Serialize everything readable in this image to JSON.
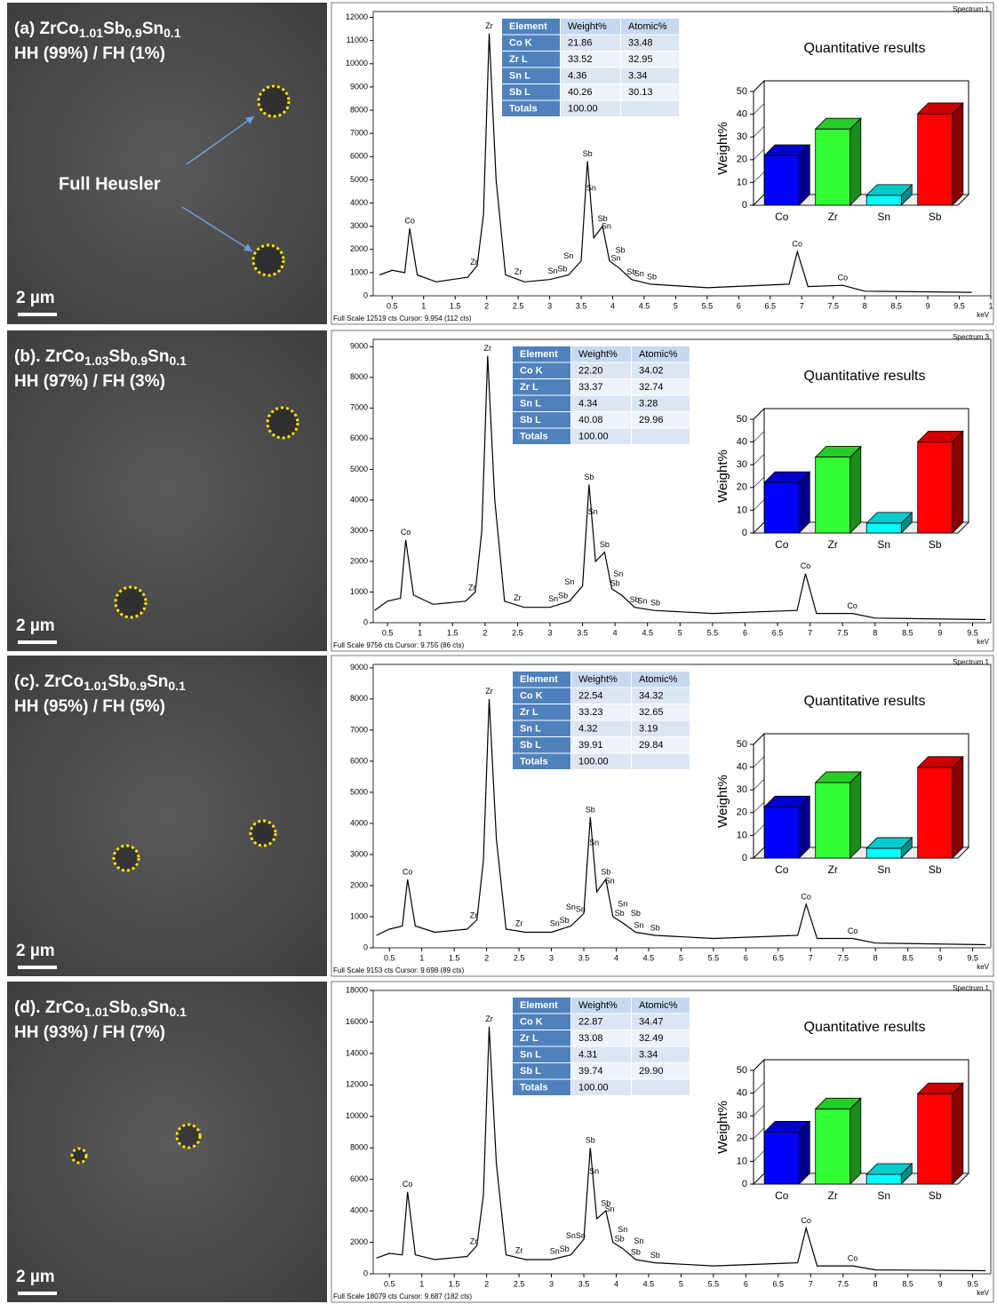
{
  "images": [
    {
      "title_parts": [
        "(a)  ZrCo",
        "1.01",
        "Sb",
        "0.9",
        "Sn",
        "0.1"
      ],
      "phase": "HH (99%) / FH (1%)",
      "scale_bar": "2 µm",
      "annotation": "Full Heusler"
    },
    {
      "title_parts": [
        "(b). ZrCo",
        "1.03",
        "Sb",
        "0.9",
        "Sn",
        "0.1"
      ],
      "phase": "HH (97%) / FH (3%)",
      "scale_bar": "2 µm"
    },
    {
      "title_parts": [
        "(c). ZrCo",
        "1.01",
        "Sb",
        "0.9",
        "Sn",
        "0.1"
      ],
      "phase": "HH (95%) / FH (5%)",
      "scale_bar": "2 µm"
    },
    {
      "title_parts": [
        "(d). ZrCo",
        "1.01",
        "Sb",
        "0.9",
        "Sn",
        "0.1"
      ],
      "phase": "HH (93%) / FH (7%)",
      "scale_bar": "2 µm"
    }
  ],
  "tables": [
    {
      "header": [
        "Element",
        "Weight%",
        "Atomic%"
      ],
      "rows": [
        [
          "Co K",
          "21.86",
          "33.48"
        ],
        [
          "Zr L",
          "33.52",
          "32.95"
        ],
        [
          "Sn L",
          "4.36",
          "3.34"
        ],
        [
          "Sb L",
          "40.26",
          "30.13"
        ],
        [
          "Totals",
          "100.00",
          ""
        ]
      ]
    },
    {
      "header": [
        "Element",
        "Weight%",
        "Atomic%"
      ],
      "rows": [
        [
          "Co K",
          "22.20",
          "34.02"
        ],
        [
          "Zr L",
          "33.37",
          "32.74"
        ],
        [
          "Sn L",
          "4.34",
          "3.28"
        ],
        [
          "Sb L",
          "40.08",
          "29.96"
        ],
        [
          "Totals",
          "100.00",
          ""
        ]
      ]
    },
    {
      "header": [
        "Element",
        "Weight%",
        "Atomic%"
      ],
      "rows": [
        [
          "Co K",
          "22.54",
          "34.32"
        ],
        [
          "Zr L",
          "33.23",
          "32.65"
        ],
        [
          "Sn L",
          "4.32",
          "3.19"
        ],
        [
          "Sb L",
          "39.91",
          "29.84"
        ],
        [
          "Totals",
          "100.00",
          ""
        ]
      ]
    },
    {
      "header": [
        "Element",
        "Weight%",
        "Atomic%"
      ],
      "rows": [
        [
          "Co K",
          "22.87",
          "34.47"
        ],
        [
          "Zr L",
          "33.08",
          "32.49"
        ],
        [
          "Sn L",
          "4.31",
          "3.34"
        ],
        [
          "Sb L",
          "39.74",
          "29.90"
        ],
        [
          "Totals",
          "100.00",
          ""
        ]
      ]
    }
  ],
  "chart_data": [
    {
      "type": "line",
      "spectrum_label": "Spectrum 1",
      "footer": "Full Scale 12519 cts Cursor: 9.954  (112 cts)",
      "xlabel": "keV",
      "color": "#000000",
      "x": [
        0.3,
        0.5,
        0.7,
        0.78,
        0.9,
        1.2,
        1.7,
        1.85,
        1.95,
        2.04,
        2.15,
        2.3,
        2.6,
        3.0,
        3.3,
        3.5,
        3.6,
        3.7,
        3.84,
        3.95,
        4.1,
        4.3,
        4.6,
        5.5,
        6.8,
        6.93,
        7.1,
        7.65,
        8.0,
        9.7
      ],
      "values": [
        900,
        1100,
        1000,
        2900,
        900,
        600,
        800,
        1300,
        3500,
        11300,
        5000,
        900,
        600,
        700,
        900,
        1500,
        5800,
        2500,
        3000,
        1500,
        1200,
        700,
        500,
        350,
        500,
        1900,
        400,
        450,
        200,
        150
      ],
      "xlim": [
        0.2,
        10.0
      ],
      "ylim": [
        0,
        12250
      ],
      "xticks": [
        0.5,
        1,
        1.5,
        2,
        2.5,
        3,
        3.5,
        4,
        4.5,
        5,
        5.5,
        6,
        6.5,
        7,
        7.5,
        8,
        8.5,
        9,
        9.5,
        {
          "value": 10,
          "label": "1"
        }
      ],
      "yticks": [
        0,
        1000,
        2000,
        3000,
        4000,
        5000,
        6000,
        7000,
        8000,
        9000,
        10000,
        11000,
        12000
      ],
      "peak_labels": [
        {
          "label": "Co",
          "x": 0.78
        },
        {
          "label": "Zr",
          "x": 1.8
        },
        {
          "label": "Zr",
          "x": 2.04
        },
        {
          "label": "Zr",
          "x": 2.5
        },
        {
          "label": "Sn",
          "x": 3.05
        },
        {
          "label": "Sb",
          "x": 3.2
        },
        {
          "label": "Sn",
          "x": 3.3
        },
        {
          "label": "Sb",
          "x": 3.6
        },
        {
          "label": "Sn",
          "x": 3.66
        },
        {
          "label": "Sb",
          "x": 3.84
        },
        {
          "label": "Sn",
          "x": 3.9
        },
        {
          "label": "Sn",
          "x": 4.05
        },
        {
          "label": "Sb",
          "x": 4.12
        },
        {
          "label": "Sb",
          "x": 4.3
        },
        {
          "label": "Sn",
          "x": 4.42
        },
        {
          "label": "Sb",
          "x": 4.62
        },
        {
          "label": "Co",
          "x": 6.93
        },
        {
          "label": "Co",
          "x": 7.65
        }
      ]
    },
    {
      "type": "bar3d",
      "title": "Quantitative results",
      "ylabel": "Weight%",
      "categories": [
        "Co",
        "Zr",
        "Sn",
        "Sb"
      ],
      "values": [
        21.86,
        33.52,
        4.36,
        40.26
      ],
      "colors": [
        "#0000ff",
        "#33ff33",
        "#00ffff",
        "#ff0000"
      ],
      "ylim": [
        0,
        50
      ],
      "yticks": [
        0,
        10,
        20,
        30,
        40,
        50
      ]
    },
    {
      "type": "line",
      "spectrum_label": "Spectrum 3",
      "footer": "Full Scale 9756 cts Cursor: 9.755  (86 cts)",
      "xlabel": "keV",
      "color": "#000000",
      "x": [
        0.3,
        0.5,
        0.7,
        0.78,
        0.9,
        1.2,
        1.7,
        1.85,
        1.95,
        2.04,
        2.15,
        2.3,
        2.6,
        3.0,
        3.3,
        3.5,
        3.6,
        3.7,
        3.84,
        3.95,
        4.1,
        4.3,
        4.6,
        5.5,
        6.8,
        6.93,
        7.1,
        7.65,
        8.0,
        9.7
      ],
      "values": [
        400,
        700,
        800,
        2700,
        900,
        600,
        700,
        1000,
        3000,
        8700,
        4000,
        700,
        500,
        500,
        700,
        1200,
        4500,
        2000,
        2300,
        1100,
        900,
        500,
        400,
        300,
        400,
        1600,
        300,
        300,
        150,
        100
      ],
      "xlim": [
        0.28,
        9.78
      ],
      "ylim": [
        0,
        9240
      ],
      "xticks": [
        0.5,
        1,
        1.5,
        2,
        2.5,
        3,
        3.5,
        4,
        4.5,
        5,
        5.5,
        6,
        6.5,
        7,
        7.5,
        8,
        8.5,
        9,
        9.5
      ],
      "yticks": [
        0,
        1000,
        2000,
        3000,
        4000,
        5000,
        6000,
        7000,
        8000,
        9000
      ],
      "peak_labels": [
        {
          "label": "Co",
          "x": 0.78
        },
        {
          "label": "Zr",
          "x": 1.8
        },
        {
          "label": "Zr",
          "x": 2.04
        },
        {
          "label": "Zr",
          "x": 2.5
        },
        {
          "label": "Sn",
          "x": 3.05
        },
        {
          "label": "Sb",
          "x": 3.2
        },
        {
          "label": "Sn",
          "x": 3.3
        },
        {
          "label": "Sb",
          "x": 3.6
        },
        {
          "label": "Sn",
          "x": 3.66
        },
        {
          "label": "Sb",
          "x": 3.84
        },
        {
          "label": "Sb",
          "x": 4.0
        },
        {
          "label": "Sn",
          "x": 4.05
        },
        {
          "label": "Sb",
          "x": 4.3
        },
        {
          "label": "Sn",
          "x": 4.42
        },
        {
          "label": "Sb",
          "x": 4.62
        },
        {
          "label": "Co",
          "x": 6.93
        },
        {
          "label": "Co",
          "x": 7.65
        }
      ]
    },
    {
      "type": "bar3d",
      "title": "Quantitative results",
      "ylabel": "Weight%",
      "categories": [
        "Co",
        "Zr",
        "Sn",
        "Sb"
      ],
      "values": [
        22.2,
        33.37,
        4.34,
        40.08
      ],
      "colors": [
        "#0000ff",
        "#33ff33",
        "#00ffff",
        "#ff0000"
      ],
      "ylim": [
        0,
        50
      ],
      "yticks": [
        0,
        10,
        20,
        30,
        40,
        50
      ]
    },
    {
      "type": "line",
      "spectrum_label": "Spectrum 1",
      "footer": "Full Scale 9153 cts Cursor: 9.698  (89 cts)",
      "xlabel": "keV",
      "color": "#000000",
      "x": [
        0.3,
        0.5,
        0.7,
        0.78,
        0.9,
        1.2,
        1.7,
        1.85,
        1.95,
        2.04,
        2.15,
        2.3,
        2.6,
        3.0,
        3.3,
        3.5,
        3.6,
        3.7,
        3.84,
        3.95,
        4.1,
        4.3,
        4.6,
        5.5,
        6.8,
        6.93,
        7.1,
        7.65,
        8.0,
        9.7
      ],
      "values": [
        400,
        600,
        700,
        2200,
        700,
        500,
        600,
        900,
        2800,
        8000,
        3500,
        600,
        500,
        500,
        700,
        1100,
        4200,
        1800,
        2200,
        1000,
        800,
        500,
        400,
        300,
        400,
        1400,
        300,
        300,
        150,
        100
      ],
      "xlim": [
        0.25,
        9.78
      ],
      "ylim": [
        0,
        9110
      ],
      "xticks": [
        0.5,
        1,
        1.5,
        2,
        2.5,
        3,
        3.5,
        4,
        4.5,
        5,
        5.5,
        6,
        6.5,
        7,
        7.5,
        8,
        8.5,
        9,
        9.5
      ],
      "yticks": [
        0,
        1000,
        2000,
        3000,
        4000,
        5000,
        6000,
        7000,
        8000,
        9000
      ],
      "peak_labels": [
        {
          "label": "Co",
          "x": 0.78
        },
        {
          "label": "Zr",
          "x": 1.8
        },
        {
          "label": "Zr",
          "x": 2.04
        },
        {
          "label": "Zr",
          "x": 2.5
        },
        {
          "label": "Sn",
          "x": 3.05
        },
        {
          "label": "Sb",
          "x": 3.2
        },
        {
          "label": "Sn",
          "x": 3.3
        },
        {
          "label": "Sn",
          "x": 3.45
        },
        {
          "label": "Sb",
          "x": 3.6
        },
        {
          "label": "Sn",
          "x": 3.66
        },
        {
          "label": "Sb",
          "x": 3.84
        },
        {
          "label": "Sn",
          "x": 3.9
        },
        {
          "label": "Sb",
          "x": 4.05
        },
        {
          "label": "Sn",
          "x": 4.1
        },
        {
          "label": "Sn",
          "x": 4.35
        },
        {
          "label": "Sb",
          "x": 4.3
        },
        {
          "label": "Sb",
          "x": 4.6
        },
        {
          "label": "Co",
          "x": 6.93
        },
        {
          "label": "Co",
          "x": 7.65
        }
      ]
    },
    {
      "type": "bar3d",
      "title": "Quantitative results",
      "ylabel": "Weight%",
      "categories": [
        "Co",
        "Zr",
        "Sn",
        "Sb"
      ],
      "values": [
        22.54,
        33.23,
        4.32,
        39.91
      ],
      "colors": [
        "#0000ff",
        "#33ff33",
        "#00ffff",
        "#ff0000"
      ],
      "ylim": [
        0,
        50
      ],
      "yticks": [
        0,
        10,
        20,
        30,
        40,
        50
      ]
    },
    {
      "type": "line",
      "spectrum_label": "Spectrum 1",
      "footer": "Full Scale 18079 cts Cursor: 9.687  (182 cts)",
      "xlabel": "keV",
      "color": "#000000",
      "x": [
        0.3,
        0.5,
        0.7,
        0.78,
        0.9,
        1.2,
        1.7,
        1.85,
        1.95,
        2.04,
        2.15,
        2.3,
        2.6,
        3.0,
        3.3,
        3.5,
        3.6,
        3.7,
        3.84,
        3.95,
        4.1,
        4.3,
        4.6,
        5.5,
        6.8,
        6.93,
        7.1,
        7.65,
        8.0,
        9.7
      ],
      "values": [
        1000,
        1300,
        1200,
        5200,
        1200,
        900,
        1100,
        1800,
        5000,
        15700,
        7000,
        1200,
        900,
        900,
        1200,
        2200,
        8000,
        3500,
        4000,
        2000,
        1600,
        900,
        700,
        500,
        700,
        2900,
        500,
        500,
        250,
        200
      ],
      "xlim": [
        0.25,
        9.78
      ],
      "ylim": [
        0,
        18000
      ],
      "xticks": [
        0.5,
        1,
        1.5,
        2,
        2.5,
        3,
        3.5,
        4,
        4.5,
        5,
        5.5,
        6,
        6.5,
        7,
        7.5,
        8,
        8.5,
        9,
        9.5
      ],
      "yticks": [
        0,
        2000,
        4000,
        6000,
        8000,
        10000,
        12000,
        14000,
        16000,
        18000
      ],
      "peak_labels": [
        {
          "label": "Co",
          "x": 0.78
        },
        {
          "label": "Zr",
          "x": 1.8
        },
        {
          "label": "Zr",
          "x": 2.04
        },
        {
          "label": "Zr",
          "x": 2.5
        },
        {
          "label": "Sn",
          "x": 3.05
        },
        {
          "label": "Sb",
          "x": 3.2
        },
        {
          "label": "Sn",
          "x": 3.3
        },
        {
          "label": "Sn",
          "x": 3.45
        },
        {
          "label": "Sb",
          "x": 3.6
        },
        {
          "label": "Sn",
          "x": 3.66
        },
        {
          "label": "Sb",
          "x": 3.84
        },
        {
          "label": "Sn",
          "x": 3.9
        },
        {
          "label": "Sb",
          "x": 4.05
        },
        {
          "label": "Sn",
          "x": 4.1
        },
        {
          "label": "Sb",
          "x": 4.3
        },
        {
          "label": "Sn",
          "x": 4.35
        },
        {
          "label": "Sb",
          "x": 4.6
        },
        {
          "label": "Co",
          "x": 6.93
        },
        {
          "label": "Co",
          "x": 7.65
        }
      ]
    },
    {
      "type": "bar3d",
      "title": "Quantitative results",
      "ylabel": "Weight%",
      "categories": [
        "Co",
        "Zr",
        "Sn",
        "Sb"
      ],
      "values": [
        22.87,
        33.08,
        4.31,
        39.74
      ],
      "colors": [
        "#0000ff",
        "#33ff33",
        "#00ffff",
        "#ff0000"
      ],
      "ylim": [
        0,
        50
      ],
      "yticks": [
        0,
        10,
        20,
        30,
        40,
        50
      ]
    }
  ]
}
